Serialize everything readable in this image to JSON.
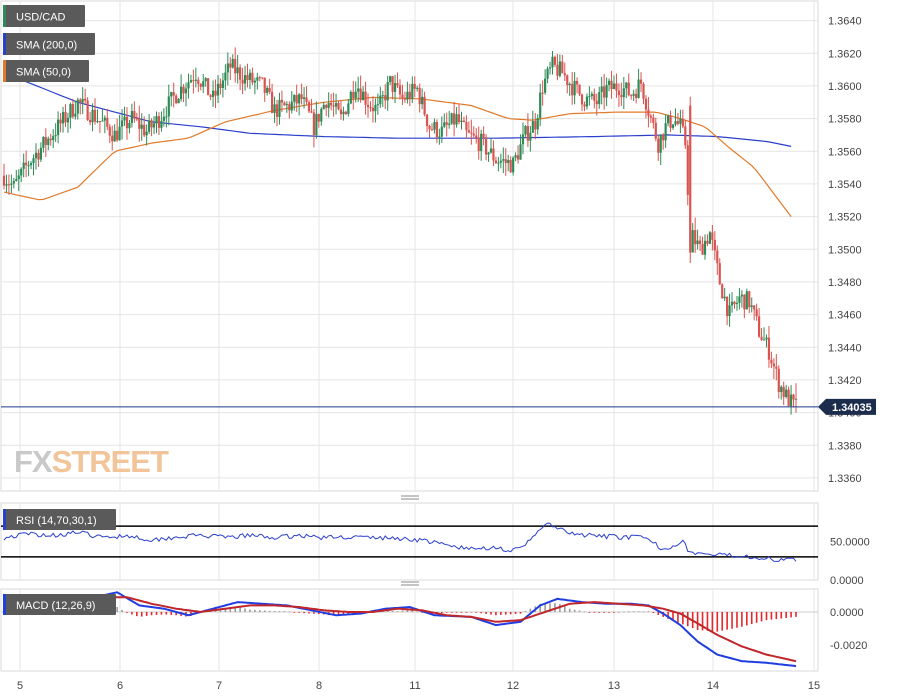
{
  "instrument": "USD/CAD",
  "brand": {
    "left": "FX",
    "right": "STREET"
  },
  "colors": {
    "up": "#2e8b57",
    "down": "#d9534f",
    "sma200": "#2a3fcc",
    "sma50": "#e07a2a",
    "rsi": "#2a3fcc",
    "macd": "#1f3de0",
    "signal": "#c0262a",
    "hist_pos": "#9a9a9a",
    "hist_neg": "#e8262a",
    "grid": "#e4e4e4",
    "price_line": "#1f3a8a"
  },
  "legend": {
    "pair": "USD/CAD",
    "sma200": "SMA (200,0)",
    "sma50": "SMA (50,0)",
    "rsi": "RSI (14,70,30,1)",
    "macd": "MACD (12,26,9)"
  },
  "price_axis": {
    "ticks": [
      "1.3360",
      "1.3380",
      "1.3400",
      "1.3420",
      "1.3440",
      "1.3460",
      "1.3480",
      "1.3500",
      "1.3520",
      "1.3540",
      "1.3560",
      "1.3580",
      "1.3600",
      "1.3620",
      "1.3640"
    ],
    "current_label": "1.34035"
  },
  "rsi_axis": {
    "ticks": [
      "0.0000",
      "50.0000"
    ]
  },
  "macd_axis": {
    "ticks": [
      "0.0000",
      "-0.0020"
    ]
  },
  "x_axis": {
    "labels": [
      "5",
      "6",
      "7",
      "8",
      "11",
      "12",
      "13",
      "14",
      "15"
    ]
  },
  "chart_data": {
    "type": "candlestick",
    "title": "USD/CAD",
    "ylim": [
      1.3352,
      1.3652
    ],
    "x_labels": [
      "5",
      "6",
      "7",
      "8",
      "11",
      "12",
      "13",
      "14",
      "15"
    ],
    "current_price": 1.34035,
    "anchors": [
      [
        0,
        1.3545
      ],
      [
        4,
        1.3538
      ],
      [
        10,
        1.3553
      ],
      [
        15,
        1.3562
      ],
      [
        22,
        1.3575
      ],
      [
        30,
        1.359
      ],
      [
        38,
        1.358
      ],
      [
        45,
        1.357
      ],
      [
        52,
        1.358
      ],
      [
        58,
        1.3572
      ],
      [
        63,
        1.358
      ],
      [
        70,
        1.3595
      ],
      [
        78,
        1.3608
      ],
      [
        85,
        1.3592
      ],
      [
        92,
        1.3612
      ],
      [
        98,
        1.3605
      ],
      [
        105,
        1.36
      ],
      [
        110,
        1.3585
      ],
      [
        116,
        1.3588
      ],
      [
        121,
        1.3592
      ],
      [
        126,
        1.3575
      ],
      [
        131,
        1.3592
      ],
      [
        137,
        1.358
      ],
      [
        143,
        1.3602
      ],
      [
        148,
        1.359
      ],
      [
        152,
        1.3585
      ],
      [
        157,
        1.3602
      ],
      [
        162,
        1.3592
      ],
      [
        168,
        1.3598
      ],
      [
        173,
        1.3575
      ],
      [
        178,
        1.3572
      ],
      [
        184,
        1.358
      ],
      [
        188,
        1.357
      ],
      [
        194,
        1.3565
      ],
      [
        200,
        1.3555
      ],
      [
        207,
        1.3552
      ],
      [
        212,
        1.357
      ],
      [
        216,
        1.3578
      ],
      [
        219,
        1.36
      ],
      [
        223,
        1.3612
      ],
      [
        227,
        1.3608
      ],
      [
        231,
        1.36
      ],
      [
        236,
        1.3592
      ],
      [
        241,
        1.359
      ],
      [
        245,
        1.3598
      ],
      [
        250,
        1.36
      ],
      [
        255,
        1.3595
      ],
      [
        259,
        1.3602
      ],
      [
        263,
        1.358
      ],
      [
        266,
        1.3565
      ],
      [
        269,
        1.3575
      ],
      [
        272,
        1.358
      ],
      [
        275,
        1.3575
      ],
      [
        277,
        1.3565
      ],
      [
        279,
        1.351
      ],
      [
        283,
        1.35
      ],
      [
        287,
        1.351
      ],
      [
        291,
        1.348
      ],
      [
        295,
        1.346
      ],
      [
        299,
        1.347
      ],
      [
        303,
        1.3468
      ],
      [
        307,
        1.345
      ],
      [
        311,
        1.3438
      ],
      [
        315,
        1.3418
      ],
      [
        318,
        1.341
      ],
      [
        321,
        1.3404
      ]
    ],
    "sma200": [
      [
        0,
        1.3608
      ],
      [
        30,
        1.359
      ],
      [
        60,
        1.3578
      ],
      [
        80,
        1.3575
      ],
      [
        100,
        1.3571
      ],
      [
        130,
        1.3569
      ],
      [
        160,
        1.3568
      ],
      [
        200,
        1.3568
      ],
      [
        240,
        1.3569
      ],
      [
        270,
        1.357
      ],
      [
        290,
        1.3569
      ],
      [
        310,
        1.3566
      ],
      [
        320,
        1.3563
      ]
    ],
    "sma50": [
      [
        0,
        1.3535
      ],
      [
        15,
        1.353
      ],
      [
        30,
        1.3538
      ],
      [
        45,
        1.356
      ],
      [
        60,
        1.3565
      ],
      [
        75,
        1.3568
      ],
      [
        90,
        1.3578
      ],
      [
        110,
        1.3585
      ],
      [
        130,
        1.359
      ],
      [
        150,
        1.3593
      ],
      [
        170,
        1.3592
      ],
      [
        190,
        1.3588
      ],
      [
        205,
        1.358
      ],
      [
        215,
        1.3579
      ],
      [
        230,
        1.3583
      ],
      [
        250,
        1.3584
      ],
      [
        265,
        1.3584
      ],
      [
        275,
        1.358
      ],
      [
        285,
        1.3575
      ],
      [
        295,
        1.3562
      ],
      [
        305,
        1.355
      ],
      [
        315,
        1.353
      ],
      [
        320,
        1.352
      ]
    ],
    "rsi": {
      "ylim": [
        0,
        100
      ],
      "levels": [
        30,
        70
      ],
      "anchors": [
        [
          0,
          55
        ],
        [
          10,
          60
        ],
        [
          20,
          58
        ],
        [
          30,
          62
        ],
        [
          40,
          55
        ],
        [
          50,
          58
        ],
        [
          60,
          52
        ],
        [
          70,
          56
        ],
        [
          80,
          58
        ],
        [
          90,
          55
        ],
        [
          100,
          58
        ],
        [
          110,
          55
        ],
        [
          120,
          58
        ],
        [
          130,
          55
        ],
        [
          140,
          56
        ],
        [
          150,
          55
        ],
        [
          160,
          54
        ],
        [
          170,
          52
        ],
        [
          180,
          45
        ],
        [
          190,
          40
        ],
        [
          200,
          43
        ],
        [
          205,
          38
        ],
        [
          210,
          40
        ],
        [
          214,
          52
        ],
        [
          218,
          68
        ],
        [
          222,
          72
        ],
        [
          230,
          60
        ],
        [
          240,
          57
        ],
        [
          250,
          56
        ],
        [
          260,
          55
        ],
        [
          264,
          48
        ],
        [
          268,
          40
        ],
        [
          272,
          45
        ],
        [
          276,
          50
        ],
        [
          278,
          40
        ],
        [
          280,
          35
        ],
        [
          290,
          32
        ],
        [
          300,
          32
        ],
        [
          310,
          28
        ],
        [
          315,
          25
        ],
        [
          318,
          30
        ],
        [
          322,
          27
        ]
      ]
    },
    "macd": {
      "ylim": [
        -0.0036,
        0.0014
      ],
      "macd_anchors": [
        [
          0,
          0.0003
        ],
        [
          10,
          0.0004
        ],
        [
          20,
          0.0006
        ],
        [
          30,
          0.0008
        ],
        [
          40,
          0.001
        ],
        [
          46,
          0.0012
        ],
        [
          55,
          0.0004
        ],
        [
          65,
          0.0002
        ],
        [
          75,
          -0.0002
        ],
        [
          85,
          0.0002
        ],
        [
          95,
          0.0006
        ],
        [
          105,
          0.0005
        ],
        [
          115,
          0.0004
        ],
        [
          125,
          0.0001
        ],
        [
          135,
          -0.0002
        ],
        [
          145,
          -0.0001
        ],
        [
          155,
          0.0002
        ],
        [
          165,
          0.0003
        ],
        [
          175,
          -0.0002
        ],
        [
          190,
          -0.0003
        ],
        [
          200,
          -0.0008
        ],
        [
          210,
          -0.0006
        ],
        [
          218,
          0.0004
        ],
        [
          225,
          0.0008
        ],
        [
          235,
          0.0006
        ],
        [
          245,
          0.0005
        ],
        [
          255,
          0.0005
        ],
        [
          262,
          0.0004
        ],
        [
          268,
          -0.0001
        ],
        [
          275,
          -0.0008
        ],
        [
          282,
          -0.0018
        ],
        [
          290,
          -0.0026
        ],
        [
          300,
          -0.003
        ],
        [
          310,
          -0.0031
        ],
        [
          322,
          -0.0033
        ]
      ],
      "signal_anchors": [
        [
          0,
          0.0002
        ],
        [
          10,
          0.0003
        ],
        [
          20,
          0.0005
        ],
        [
          30,
          0.0007
        ],
        [
          40,
          0.0009
        ],
        [
          50,
          0.0009
        ],
        [
          60,
          0.0005
        ],
        [
          70,
          0.0002
        ],
        [
          80,
          0.0
        ],
        [
          90,
          0.0002
        ],
        [
          100,
          0.0004
        ],
        [
          110,
          0.0004
        ],
        [
          120,
          0.0003
        ],
        [
          130,
          0.0001
        ],
        [
          140,
          0.0
        ],
        [
          150,
          0.0
        ],
        [
          160,
          0.0002
        ],
        [
          170,
          0.0001
        ],
        [
          180,
          -0.0002
        ],
        [
          190,
          -0.0003
        ],
        [
          200,
          -0.0006
        ],
        [
          210,
          -0.0005
        ],
        [
          220,
          0.0
        ],
        [
          230,
          0.0005
        ],
        [
          240,
          0.0006
        ],
        [
          250,
          0.0005
        ],
        [
          260,
          0.0004
        ],
        [
          268,
          0.0002
        ],
        [
          275,
          -0.0001
        ],
        [
          282,
          -0.0007
        ],
        [
          290,
          -0.0014
        ],
        [
          300,
          -0.0021
        ],
        [
          310,
          -0.0026
        ],
        [
          322,
          -0.003
        ]
      ]
    }
  }
}
